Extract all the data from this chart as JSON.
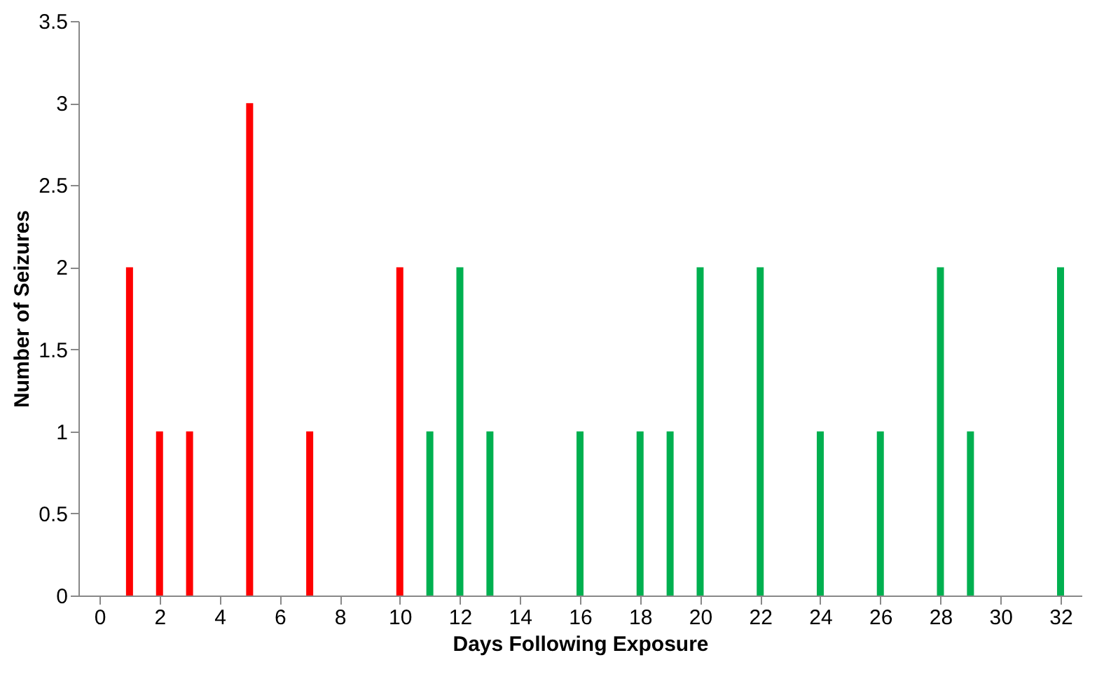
{
  "chart_data": {
    "type": "bar",
    "xlabel": "Days Following Exposure",
    "ylabel": "Number of Seizures",
    "series": [
      {
        "color": "#ff0000",
        "x": [
          1,
          2,
          3,
          5,
          7,
          10
        ],
        "values": [
          2,
          1,
          1,
          3,
          1,
          2
        ]
      },
      {
        "color": "#00b050",
        "x": [
          11,
          12,
          13,
          16,
          18,
          19,
          20,
          22,
          24,
          26,
          28,
          29,
          32
        ],
        "values": [
          1,
          2,
          1,
          1,
          1,
          1,
          2,
          2,
          1,
          1,
          2,
          1,
          2
        ]
      }
    ],
    "xlim": [
      -0.7,
      32.7
    ],
    "xticks": [
      0,
      2,
      4,
      6,
      8,
      10,
      12,
      14,
      16,
      18,
      20,
      22,
      24,
      26,
      28,
      30,
      32
    ],
    "ylim": [
      0,
      3.5
    ],
    "yticks": [
      0,
      0.5,
      1,
      1.5,
      2,
      2.5,
      3,
      3.5
    ],
    "grid": false,
    "legend": false
  }
}
